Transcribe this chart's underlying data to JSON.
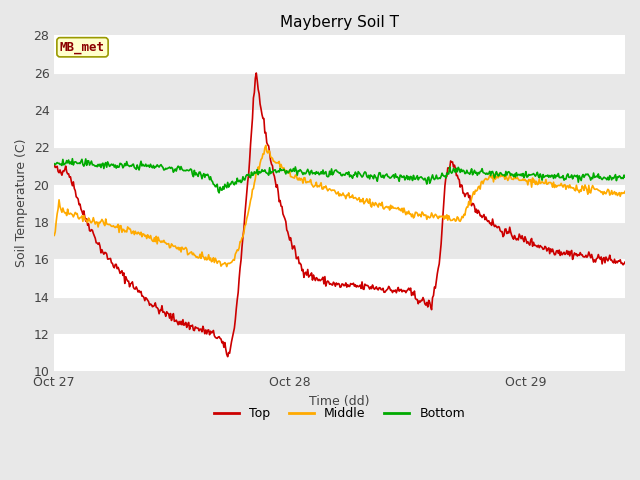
{
  "title": "Mayberry Soil T",
  "xlabel": "Time (dd)",
  "ylabel": "Soil Temperature (C)",
  "ylim": [
    10,
    28
  ],
  "yticks": [
    10,
    12,
    14,
    16,
    18,
    20,
    22,
    24,
    26,
    28
  ],
  "xtick_positions": [
    0,
    1.0,
    2.0
  ],
  "xtick_labels": [
    "Oct 27",
    "Oct 28",
    "Oct 29"
  ],
  "xlim_max": 2.42,
  "background_color": "#e8e8e8",
  "plot_bg_color": "#e8e8e8",
  "grid_color": "#ffffff",
  "annotation_label": "MB_met",
  "annotation_bg": "#ffffcc",
  "annotation_border": "#999900",
  "annotation_text_color": "#8b0000",
  "line_colors": {
    "Top": "#cc0000",
    "Middle": "#ffaa00",
    "Bottom": "#00aa00"
  },
  "legend_labels": [
    "Top",
    "Middle",
    "Bottom"
  ]
}
